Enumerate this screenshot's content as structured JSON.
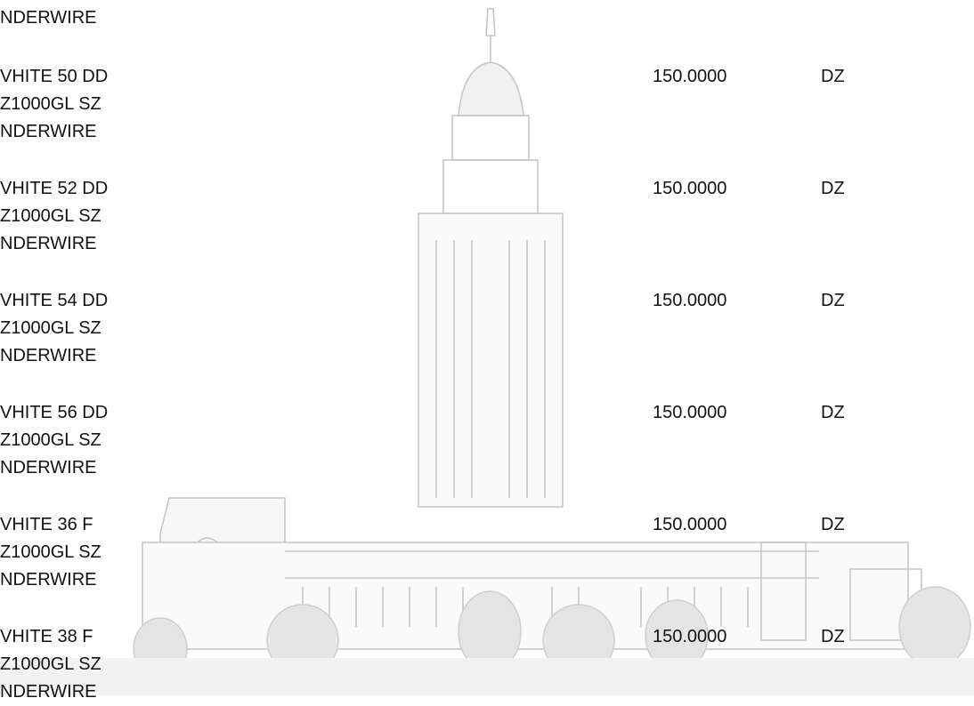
{
  "top_fragment": "NDERWIRE",
  "rows": [
    {
      "description": [
        "VHITE 50 DD",
        "Z1000GL SZ",
        "NDERWIRE"
      ],
      "quantity": "150.0000",
      "unit": "DZ"
    },
    {
      "description": [
        "VHITE 52 DD",
        "Z1000GL SZ",
        "NDERWIRE"
      ],
      "quantity": "150.0000",
      "unit": "DZ"
    },
    {
      "description": [
        "VHITE 54 DD",
        "Z1000GL SZ",
        "NDERWIRE"
      ],
      "quantity": "150.0000",
      "unit": "DZ"
    },
    {
      "description": [
        "VHITE 56 DD",
        "Z1000GL SZ",
        "NDERWIRE"
      ],
      "quantity": "150.0000",
      "unit": "DZ"
    },
    {
      "description": [
        "VHITE 36 F",
        "Z1000GL SZ",
        "NDERWIRE"
      ],
      "quantity": "150.0000",
      "unit": "DZ"
    },
    {
      "description": [
        "VHITE 38 F",
        "Z1000GL SZ",
        "NDERWIRE"
      ],
      "quantity": "150.0000",
      "unit": "DZ"
    }
  ]
}
